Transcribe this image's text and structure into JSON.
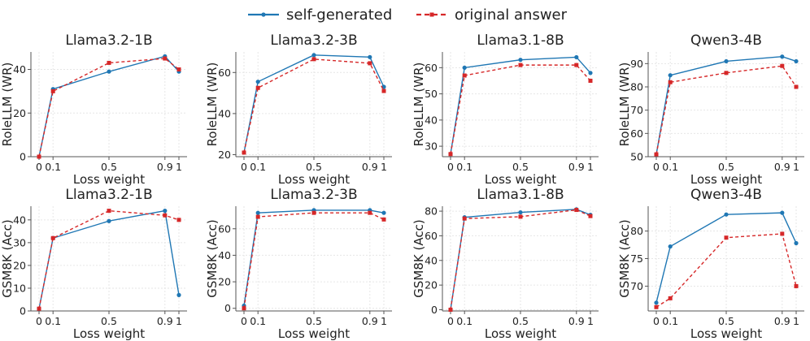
{
  "legend": {
    "items": [
      {
        "label": "self-generated",
        "color": "#1f77b4",
        "style": "solid",
        "marker": "circle"
      },
      {
        "label": "original answer",
        "color": "#d62728",
        "style": "dashed",
        "marker": "square"
      }
    ],
    "position": "top-center"
  },
  "chart_data": [
    {
      "type": "line",
      "title": "Llama3.2-1B",
      "xlabel": "Loss weight",
      "ylabel": "RoleLLM (WR)",
      "x": [
        0,
        0.1,
        0.5,
        0.9,
        1
      ],
      "xticks": [
        "0",
        "0.1",
        "0.5",
        "0.9",
        "1"
      ],
      "ylim": [
        0,
        48
      ],
      "yticks": [
        0,
        20,
        40
      ],
      "series": [
        {
          "name": "self-generated",
          "values": [
            0,
            31,
            39,
            46,
            39
          ]
        },
        {
          "name": "original answer",
          "values": [
            0,
            30,
            43,
            45,
            40
          ]
        }
      ]
    },
    {
      "type": "line",
      "title": "Llama3.2-3B",
      "xlabel": "Loss weight",
      "ylabel": "RoleLLM (WR)",
      "x": [
        0,
        0.1,
        0.5,
        0.9,
        1
      ],
      "xticks": [
        "0",
        "0.1",
        "0.5",
        "0.9",
        "1"
      ],
      "ylim": [
        19,
        70
      ],
      "yticks": [
        20,
        40,
        60
      ],
      "series": [
        {
          "name": "self-generated",
          "values": [
            21,
            55.5,
            68.5,
            67.5,
            53
          ]
        },
        {
          "name": "original answer",
          "values": [
            21,
            52.5,
            66.5,
            64.5,
            51
          ]
        }
      ]
    },
    {
      "type": "line",
      "title": "Llama3.1-8B",
      "xlabel": "Loss weight",
      "ylabel": "RoleLLM (WR)",
      "x": [
        0,
        0.1,
        0.5,
        0.9,
        1
      ],
      "xticks": [
        "0",
        "0.1",
        "0.5",
        "0.9",
        "1"
      ],
      "ylim": [
        26,
        66
      ],
      "yticks": [
        30,
        40,
        50,
        60
      ],
      "series": [
        {
          "name": "self-generated",
          "values": [
            27,
            60,
            63,
            64,
            58
          ]
        },
        {
          "name": "original answer",
          "values": [
            27,
            57,
            61,
            61,
            55
          ]
        }
      ]
    },
    {
      "type": "line",
      "title": "Qwen3-4B",
      "xlabel": "Loss weight",
      "ylabel": "RoleLLM (WR)",
      "x": [
        0,
        0.1,
        0.5,
        0.9,
        1
      ],
      "xticks": [
        "0",
        "0.1",
        "0.5",
        "0.9",
        "1"
      ],
      "ylim": [
        50,
        95
      ],
      "yticks": [
        50,
        60,
        70,
        80,
        90
      ],
      "series": [
        {
          "name": "self-generated",
          "values": [
            51,
            85,
            91,
            93,
            91
          ]
        },
        {
          "name": "original answer",
          "values": [
            51,
            82,
            86,
            89,
            80
          ]
        }
      ]
    },
    {
      "type": "line",
      "title": "Llama3.2-1B",
      "xlabel": "Loss weight",
      "ylabel": "GSM8K (Acc)",
      "x": [
        0,
        0.1,
        0.5,
        0.9,
        1
      ],
      "xticks": [
        "0",
        "0.1",
        "0.5",
        "0.9",
        "1"
      ],
      "ylim": [
        0,
        46
      ],
      "yticks": [
        0,
        10,
        20,
        30,
        40
      ],
      "series": [
        {
          "name": "self-generated",
          "values": [
            1,
            32,
            39.5,
            44,
            7
          ]
        },
        {
          "name": "original answer",
          "values": [
            1,
            32,
            44,
            42,
            40
          ]
        }
      ]
    },
    {
      "type": "line",
      "title": "Llama3.2-3B",
      "xlabel": "Loss weight",
      "ylabel": "GSM8K (Acc)",
      "x": [
        0,
        0.1,
        0.5,
        0.9,
        1
      ],
      "xticks": [
        "0",
        "0.1",
        "0.5",
        "0.9",
        "1"
      ],
      "ylim": [
        -2,
        77
      ],
      "yticks": [
        0,
        20,
        40,
        60
      ],
      "series": [
        {
          "name": "self-generated",
          "values": [
            2,
            72,
            74,
            74,
            72
          ]
        },
        {
          "name": "original answer",
          "values": [
            0,
            69,
            72,
            72,
            67
          ]
        }
      ]
    },
    {
      "type": "line",
      "title": "Llama3.1-8B",
      "xlabel": "Loss weight",
      "ylabel": "GSM8K (Acc)",
      "x": [
        0,
        0.1,
        0.5,
        0.9,
        1
      ],
      "xticks": [
        "0",
        "0.1",
        "0.5",
        "0.9",
        "1"
      ],
      "ylim": [
        -1,
        84
      ],
      "yticks": [
        0,
        20,
        40,
        60,
        80
      ],
      "series": [
        {
          "name": "self-generated",
          "values": [
            0,
            75,
            79,
            81.5,
            77
          ]
        },
        {
          "name": "original answer",
          "values": [
            0,
            74,
            75.5,
            81,
            76
          ]
        }
      ]
    },
    {
      "type": "line",
      "title": "Qwen3-4B",
      "xlabel": "Loss weight",
      "ylabel": "GSM8K (Acc)",
      "x": [
        0,
        0.1,
        0.5,
        0.9,
        1
      ],
      "xticks": [
        "0",
        "0.1",
        "0.5",
        "0.9",
        "1"
      ],
      "ylim": [
        65.5,
        84.5
      ],
      "yticks": [
        70,
        75,
        80
      ],
      "series": [
        {
          "name": "self-generated",
          "values": [
            67,
            77.2,
            83,
            83.3,
            77.8
          ]
        },
        {
          "name": "original answer",
          "values": [
            66.2,
            67.8,
            78.8,
            79.5,
            70
          ]
        }
      ]
    }
  ]
}
